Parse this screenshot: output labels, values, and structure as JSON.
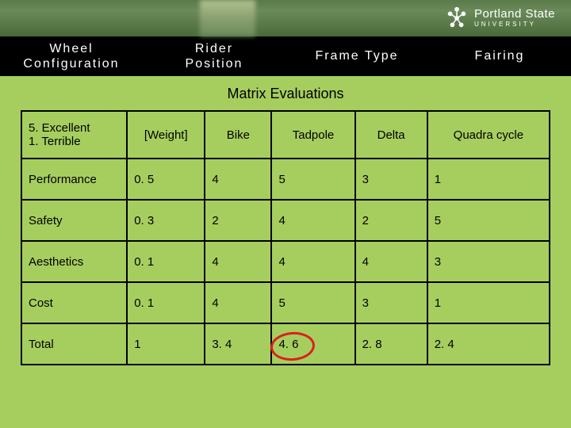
{
  "header": {
    "logo_main": "Portland State",
    "logo_sub": "UNIVERSITY"
  },
  "nav": [
    "Wheel\nConfiguration",
    "Rider\nPosition",
    "Frame Type",
    "Fairing"
  ],
  "title": "Matrix Evaluations",
  "table": {
    "columns": [
      "5. Excellent\n1. Terrible",
      "[Weight]",
      "Bike",
      "Tadpole",
      "Delta",
      "Quadra cycle"
    ],
    "rows": [
      [
        "Performance",
        "0. 5",
        "4",
        "5",
        "3",
        "1"
      ],
      [
        "Safety",
        "0. 3",
        "2",
        "4",
        "2",
        "5"
      ],
      [
        "Aesthetics",
        "0. 1",
        "4",
        "4",
        "4",
        "3"
      ],
      [
        "Cost",
        "0. 1",
        "4",
        "5",
        "3",
        "1"
      ],
      [
        "Total",
        "1",
        "3. 4",
        "4. 6",
        "2. 8",
        "2. 4"
      ]
    ],
    "circled": {
      "row": 4,
      "col": 3
    },
    "border_color": "#000000",
    "background": "#a6ce5f",
    "circle_color": "#d92020"
  }
}
